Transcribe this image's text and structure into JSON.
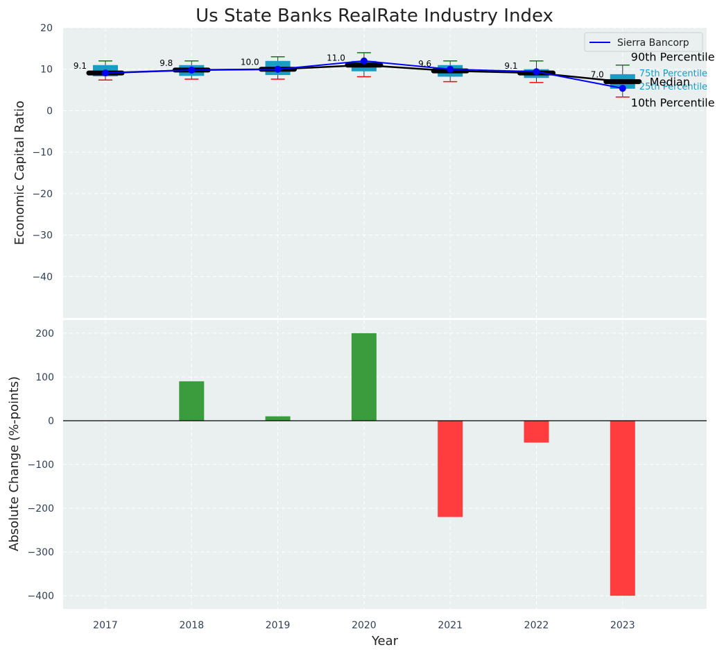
{
  "chart_data": [
    {
      "type": "box",
      "title": "Us State Banks RealRate Industry Index",
      "xlabel": "",
      "ylabel": "Economic Capital Ratio",
      "ylim": [
        -50,
        20
      ],
      "yticks": [
        20,
        10,
        0,
        -10,
        -20,
        -30,
        -40
      ],
      "categories": [
        "2017",
        "2018",
        "2019",
        "2020",
        "2021",
        "2022",
        "2023"
      ],
      "percentile_10": [
        7.4,
        7.6,
        7.6,
        8.2,
        7.0,
        6.8,
        3.3
      ],
      "percentile_25": [
        8.3,
        8.4,
        8.6,
        9.5,
        8.2,
        7.9,
        5.3
      ],
      "median": [
        9.1,
        9.8,
        10.0,
        11.0,
        9.6,
        9.1,
        7.0
      ],
      "percentile_75": [
        11.0,
        11.0,
        12.0,
        12.0,
        11.0,
        10.0,
        8.8
      ],
      "percentile_90": [
        12.0,
        12.0,
        13.0,
        14.0,
        12.0,
        12.0,
        11.0
      ],
      "median_labels": [
        "9.1",
        "9.8",
        "10.0",
        "11.0",
        "9.6",
        "9.1",
        "7.0"
      ],
      "series": [
        {
          "name": "Sierra Bancorp",
          "values": [
            9.1,
            9.8,
            10.0,
            12.0,
            10.0,
            9.4,
            5.4
          ],
          "color": "#0000ff"
        }
      ],
      "annotations": {
        "p90": "90th Percentile",
        "p75": "75th Percentile",
        "median": "Median",
        "p25": "25th Percentile",
        "p10": "10th Percentile"
      },
      "colors": {
        "box": "#1a9cc4",
        "median_line": "#000000",
        "p90": "#008000",
        "p10": "#ff0000",
        "background": "#eaeff0"
      }
    },
    {
      "type": "bar",
      "xlabel": "Year",
      "ylabel": "Absolute Change (%-points)",
      "ylim": [
        -430,
        230
      ],
      "yticks": [
        200,
        100,
        0,
        -100,
        -200,
        -300,
        -400
      ],
      "categories": [
        "2017",
        "2018",
        "2019",
        "2020",
        "2021",
        "2022",
        "2023"
      ],
      "values": [
        0,
        90,
        10,
        200,
        -220,
        -50,
        -400
      ],
      "colors": {
        "positive": "#3a9c3c",
        "negative": "#ff3c3e"
      }
    }
  ]
}
